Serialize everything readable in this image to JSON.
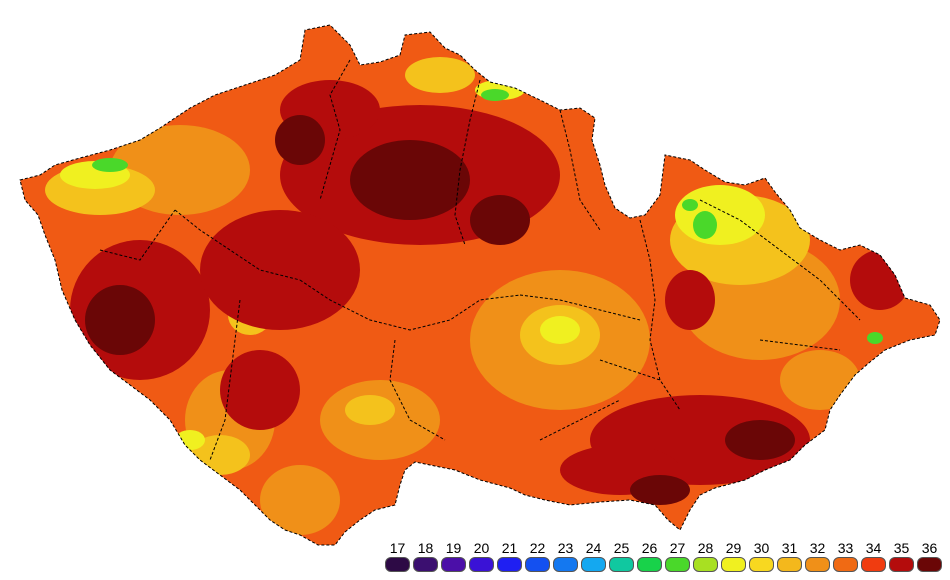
{
  "legend": {
    "items": [
      {
        "value": "17",
        "color": "#2d0a45"
      },
      {
        "value": "18",
        "color": "#3b0f70"
      },
      {
        "value": "19",
        "color": "#4b0fa8"
      },
      {
        "value": "20",
        "color": "#3a12d6"
      },
      {
        "value": "21",
        "color": "#1f1ff2"
      },
      {
        "value": "22",
        "color": "#1450f0"
      },
      {
        "value": "23",
        "color": "#1478f0"
      },
      {
        "value": "24",
        "color": "#14a8f0"
      },
      {
        "value": "25",
        "color": "#10c8a0"
      },
      {
        "value": "26",
        "color": "#18d24a"
      },
      {
        "value": "27",
        "color": "#4ad82a"
      },
      {
        "value": "28",
        "color": "#a8e022"
      },
      {
        "value": "29",
        "color": "#f0f020"
      },
      {
        "value": "30",
        "color": "#f8d820"
      },
      {
        "value": "31",
        "color": "#f4b81c"
      },
      {
        "value": "32",
        "color": "#f09018"
      },
      {
        "value": "33",
        "color": "#f06a14"
      },
      {
        "value": "34",
        "color": "#f03c10"
      },
      {
        "value": "35",
        "color": "#b40c0c"
      },
      {
        "value": "36",
        "color": "#6a0606"
      }
    ]
  },
  "map": {
    "palette": {
      "base": "#f05a14",
      "hot": "#b40c0c",
      "hottest": "#6a0606",
      "warm": "#f09018",
      "mild": "#f4c21c",
      "cool": "#f0f020",
      "cold": "#4ad82a",
      "border": "#000000"
    }
  }
}
